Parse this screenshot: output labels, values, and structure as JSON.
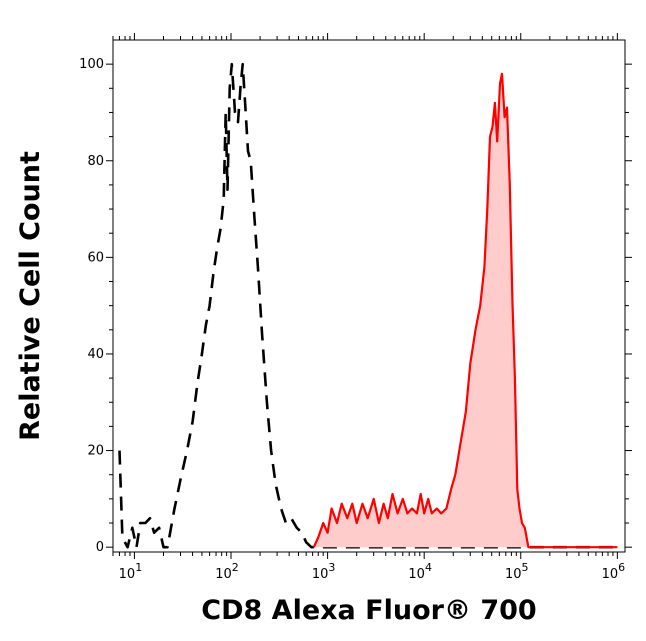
{
  "chart_data": {
    "type": "area",
    "title": "",
    "xlabel": "CD8 Alexa Fluor® 700",
    "ylabel": "Relative Cell Count",
    "x_scale": "log",
    "xlim": [
      6,
      1200000
    ],
    "ylim": [
      -1,
      105
    ],
    "x_ticks": [
      {
        "value": 10,
        "base": "10",
        "exp": "1"
      },
      {
        "value": 100,
        "base": "10",
        "exp": "2"
      },
      {
        "value": 1000,
        "base": "10",
        "exp": "3"
      },
      {
        "value": 10000,
        "base": "10",
        "exp": "4"
      },
      {
        "value": 100000,
        "base": "10",
        "exp": "5"
      },
      {
        "value": 1000000,
        "base": "10",
        "exp": "6"
      }
    ],
    "y_ticks": [
      0,
      20,
      40,
      60,
      80,
      100
    ],
    "grid": false,
    "legend": "none",
    "series": [
      {
        "style": "dashed",
        "color": "#000000",
        "points": [
          [
            7.0,
            20
          ],
          [
            7.5,
            2
          ],
          [
            8.5,
            0
          ],
          [
            9.5,
            4
          ],
          [
            10.5,
            0
          ],
          [
            11.5,
            5
          ],
          [
            13,
            5
          ],
          [
            14.5,
            6
          ],
          [
            16,
            3
          ],
          [
            18,
            4
          ],
          [
            20,
            0
          ],
          [
            22,
            0
          ],
          [
            26,
            8
          ],
          [
            30,
            14
          ],
          [
            35,
            20
          ],
          [
            40,
            26
          ],
          [
            45,
            34
          ],
          [
            50,
            40
          ],
          [
            55,
            46
          ],
          [
            60,
            50
          ],
          [
            66,
            57
          ],
          [
            72,
            62
          ],
          [
            78,
            66
          ],
          [
            84,
            72
          ],
          [
            88,
            90
          ],
          [
            92,
            74
          ],
          [
            97,
            95
          ],
          [
            102,
            100
          ],
          [
            110,
            90
          ],
          [
            118,
            88
          ],
          [
            125,
            95
          ],
          [
            132,
            100
          ],
          [
            140,
            92
          ],
          [
            150,
            82
          ],
          [
            160,
            80
          ],
          [
            175,
            68
          ],
          [
            190,
            58
          ],
          [
            210,
            44
          ],
          [
            235,
            30
          ],
          [
            260,
            20
          ],
          [
            290,
            13
          ],
          [
            330,
            8
          ],
          [
            370,
            5
          ],
          [
            420,
            6
          ],
          [
            480,
            4
          ],
          [
            540,
            3
          ],
          [
            600,
            1
          ],
          [
            680,
            0
          ],
          [
            800,
            0
          ],
          [
            1000000,
            0
          ]
        ]
      },
      {
        "style": "solid",
        "color": "#ff0000",
        "fill": "#ffcccc",
        "points": [
          [
            720,
            0
          ],
          [
            800,
            2
          ],
          [
            900,
            5
          ],
          [
            1000,
            3
          ],
          [
            1100,
            8
          ],
          [
            1250,
            5
          ],
          [
            1400,
            9
          ],
          [
            1600,
            6
          ],
          [
            1800,
            9
          ],
          [
            2000,
            5
          ],
          [
            2300,
            9
          ],
          [
            2600,
            6
          ],
          [
            3000,
            10
          ],
          [
            3400,
            5
          ],
          [
            3800,
            9
          ],
          [
            4200,
            6
          ],
          [
            4700,
            11
          ],
          [
            5300,
            7
          ],
          [
            6000,
            10
          ],
          [
            6700,
            7
          ],
          [
            7500,
            8
          ],
          [
            8400,
            7
          ],
          [
            9200,
            11
          ],
          [
            10000,
            7
          ],
          [
            11000,
            10
          ],
          [
            12000,
            7
          ],
          [
            13500,
            8
          ],
          [
            15000,
            7
          ],
          [
            17000,
            8
          ],
          [
            19000,
            12
          ],
          [
            21000,
            15
          ],
          [
            24000,
            22
          ],
          [
            27000,
            28
          ],
          [
            30000,
            38
          ],
          [
            34000,
            45
          ],
          [
            38000,
            50
          ],
          [
            42000,
            58
          ],
          [
            45000,
            70
          ],
          [
            48000,
            85
          ],
          [
            51000,
            87
          ],
          [
            54000,
            92
          ],
          [
            57000,
            84
          ],
          [
            61000,
            96
          ],
          [
            64000,
            98
          ],
          [
            68000,
            89
          ],
          [
            72000,
            91
          ],
          [
            77000,
            75
          ],
          [
            82000,
            51
          ],
          [
            87000,
            35
          ],
          [
            92000,
            12
          ],
          [
            97000,
            8
          ],
          [
            103000,
            5
          ],
          [
            110000,
            4
          ],
          [
            120000,
            0
          ],
          [
            1000000,
            0
          ]
        ]
      }
    ]
  }
}
